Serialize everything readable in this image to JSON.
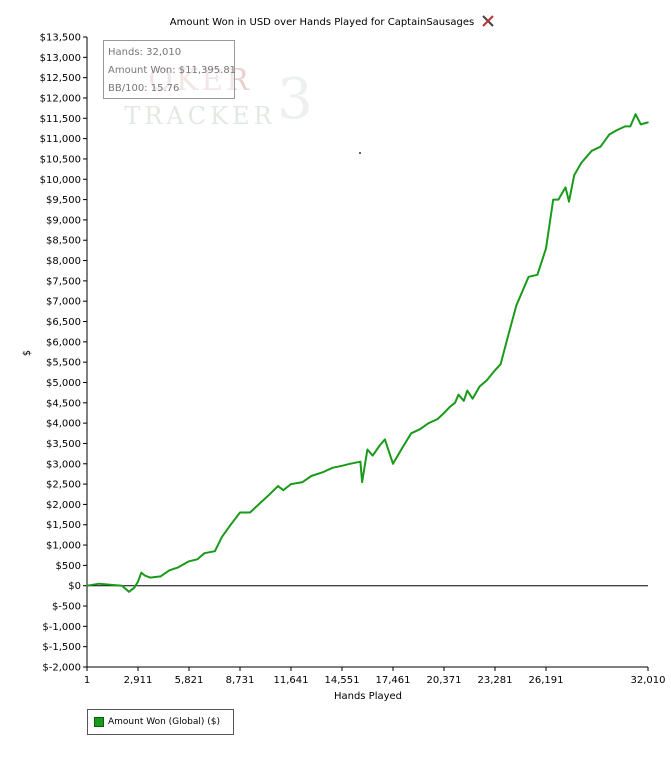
{
  "chart_data": {
    "type": "line",
    "title": "Amount Won in USD over Hands Played for CaptainSausages",
    "xlabel": "Hands Played",
    "ylabel": "$",
    "xlim": [
      1,
      32010
    ],
    "ylim": [
      -2000,
      13500
    ],
    "x_ticks": [
      1,
      2911,
      5821,
      8731,
      11641,
      14551,
      17461,
      20371,
      23281,
      26191,
      32010
    ],
    "x_tick_labels": [
      "1",
      "2,911",
      "5,821",
      "8,731",
      "11,641",
      "14,551",
      "17,461",
      "20,371",
      "23,281",
      "26,191",
      "32,010"
    ],
    "y_ticks": [
      -2000,
      -1500,
      -1000,
      -500,
      0,
      500,
      1000,
      1500,
      2000,
      2500,
      3000,
      3500,
      4000,
      4500,
      5000,
      5500,
      6000,
      6500,
      7000,
      7500,
      8000,
      8500,
      9000,
      9500,
      10000,
      10500,
      11000,
      11500,
      12000,
      12500,
      13000,
      13500
    ],
    "y_tick_labels": [
      "$-2,000",
      "$-1,500",
      "$-1,000",
      "$-500",
      "$0",
      "$500",
      "$1,000",
      "$1,500",
      "$2,000",
      "$2,500",
      "$3,000",
      "$3,500",
      "$4,000",
      "$4,500",
      "$5,000",
      "$5,500",
      "$6,000",
      "$6,500",
      "$7,000",
      "$7,500",
      "$8,000",
      "$8,500",
      "$9,000",
      "$9,500",
      "$10,000",
      "$10,500",
      "$11,000",
      "$11,500",
      "$12,000",
      "$12,500",
      "$13,000",
      "$13,500"
    ],
    "grid": false,
    "legend_position": "bottom-left",
    "series": [
      {
        "name": "Amount Won (Global) ($)",
        "color": "#1a9a1a",
        "x": [
          1,
          700,
          1400,
          2000,
          2400,
          2700,
          2911,
          3100,
          3300,
          3600,
          4200,
          4700,
          5200,
          5821,
          6300,
          6700,
          7300,
          7700,
          8200,
          8731,
          9300,
          9800,
          10300,
          10900,
          11200,
          11641,
          12300,
          12800,
          13500,
          14000,
          14551,
          15000,
          15600,
          15700,
          16000,
          16300,
          16700,
          17000,
          17461,
          18000,
          18500,
          19000,
          19500,
          20000,
          20371,
          20700,
          21000,
          21200,
          21500,
          21700,
          22000,
          22400,
          22800,
          23281,
          23600,
          24000,
          24500,
          24800,
          25200,
          25700,
          26191,
          26600,
          26900,
          27300,
          27500,
          27800,
          28200,
          28800,
          29300,
          29800,
          30200,
          30700,
          31000,
          31300,
          31600,
          32010
        ],
        "y": [
          0,
          50,
          20,
          0,
          -150,
          -50,
          100,
          320,
          250,
          200,
          230,
          380,
          450,
          600,
          650,
          800,
          850,
          1200,
          1500,
          1800,
          1800,
          2000,
          2200,
          2450,
          2350,
          2500,
          2550,
          2700,
          2800,
          2900,
          2950,
          3000,
          3050,
          2550,
          3350,
          3200,
          3450,
          3600,
          3000,
          3400,
          3750,
          3850,
          4000,
          4100,
          4250,
          4400,
          4500,
          4700,
          4550,
          4800,
          4600,
          4900,
          5050,
          5300,
          5450,
          6100,
          6900,
          7200,
          7600,
          7650,
          8300,
          9500,
          9500,
          9800,
          9450,
          10100,
          10400,
          10700,
          10800,
          11100,
          11200,
          11300,
          11300,
          11600,
          11350,
          11400
        ]
      }
    ],
    "tooltip": {
      "hands": "Hands: 32,010",
      "amount": "Amount Won: $11,395.81",
      "bb100": "BB/100: 15.76"
    },
    "watermark": "POKER TRACKER 3"
  }
}
